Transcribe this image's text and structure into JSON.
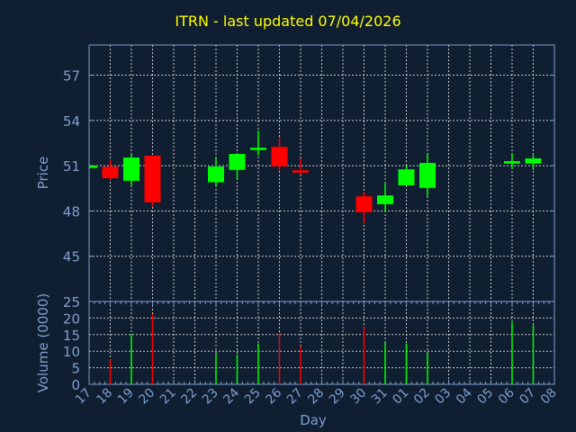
{
  "colors": {
    "background": "#0f1e30",
    "up": "#00ff00",
    "down": "#ff0000",
    "axis": "#7f9fcf",
    "grid": "#c8c8c8",
    "title": "#ffff00"
  },
  "chart_data": [
    {
      "type": "candlestick",
      "title": "ITRN - last updated 07/04/2026",
      "ylabel": "Price",
      "ylim": [
        42,
        59
      ],
      "yticks": [
        45,
        48,
        51,
        54,
        57
      ],
      "grid": true,
      "x": [
        "17",
        "18",
        "19",
        "20",
        "21",
        "22",
        "23",
        "24",
        "25",
        "26",
        "27",
        "28",
        "29",
        "30",
        "31",
        "01",
        "02",
        "03",
        "04",
        "05",
        "06",
        "07",
        "08"
      ],
      "candles": [
        {
          "day": "17",
          "open": 50.85,
          "high": 51.0,
          "low": 50.85,
          "close": 51.0
        },
        {
          "day": "18",
          "open": 50.94,
          "high": 51.4,
          "low": 50.06,
          "close": 50.17
        },
        {
          "day": "19",
          "open": 50.0,
          "high": 51.78,
          "low": 49.7,
          "close": 51.54
        },
        {
          "day": "20",
          "open": 51.66,
          "high": 51.66,
          "low": 48.3,
          "close": 48.57
        },
        {
          "day": "23",
          "open": 49.9,
          "high": 51.54,
          "low": 49.6,
          "close": 50.94
        },
        {
          "day": "24",
          "open": 50.72,
          "high": 51.78,
          "low": 50.12,
          "close": 51.78
        },
        {
          "day": "25",
          "open": 52.1,
          "high": 53.33,
          "low": 51.67,
          "close": 52.19
        },
        {
          "day": "26",
          "open": 52.25,
          "high": 52.9,
          "low": 50.64,
          "close": 50.96
        },
        {
          "day": "27",
          "open": 50.7,
          "high": 51.48,
          "low": 50.42,
          "close": 50.54
        },
        {
          "day": "30",
          "open": 48.97,
          "high": 49.27,
          "low": 47.2,
          "close": 47.92
        },
        {
          "day": "31",
          "open": 48.45,
          "high": 49.8,
          "low": 47.92,
          "close": 49.03
        },
        {
          "day": "01",
          "open": 49.7,
          "high": 51.0,
          "low": 49.7,
          "close": 50.76
        },
        {
          "day": "02",
          "open": 49.53,
          "high": 51.78,
          "low": 48.99,
          "close": 51.18
        },
        {
          "day": "06",
          "open": 51.14,
          "high": 51.78,
          "low": 50.78,
          "close": 51.3
        },
        {
          "day": "07",
          "open": 51.14,
          "high": 51.7,
          "low": 50.72,
          "close": 51.48
        }
      ]
    },
    {
      "type": "bar",
      "ylabel": "Volume (0000)",
      "xlabel": "Day",
      "ylim": [
        0,
        25
      ],
      "yticks": [
        0,
        5,
        10,
        15,
        20,
        25
      ],
      "grid": true,
      "bars": [
        {
          "day": "18",
          "value": 7.6,
          "dir": "down"
        },
        {
          "day": "19",
          "value": 15.2,
          "dir": "up"
        },
        {
          "day": "20",
          "value": 21.2,
          "dir": "down"
        },
        {
          "day": "23",
          "value": 9.3,
          "dir": "up"
        },
        {
          "day": "24",
          "value": 9.0,
          "dir": "up"
        },
        {
          "day": "25",
          "value": 12.3,
          "dir": "up"
        },
        {
          "day": "26",
          "value": 15.6,
          "dir": "down"
        },
        {
          "day": "27",
          "value": 11.5,
          "dir": "down"
        },
        {
          "day": "30",
          "value": 17.3,
          "dir": "down"
        },
        {
          "day": "31",
          "value": 12.6,
          "dir": "up"
        },
        {
          "day": "01",
          "value": 12.3,
          "dir": "up"
        },
        {
          "day": "02",
          "value": 9.3,
          "dir": "up"
        },
        {
          "day": "06",
          "value": 18.8,
          "dir": "up"
        },
        {
          "day": "07",
          "value": 17.8,
          "dir": "up"
        }
      ]
    }
  ]
}
